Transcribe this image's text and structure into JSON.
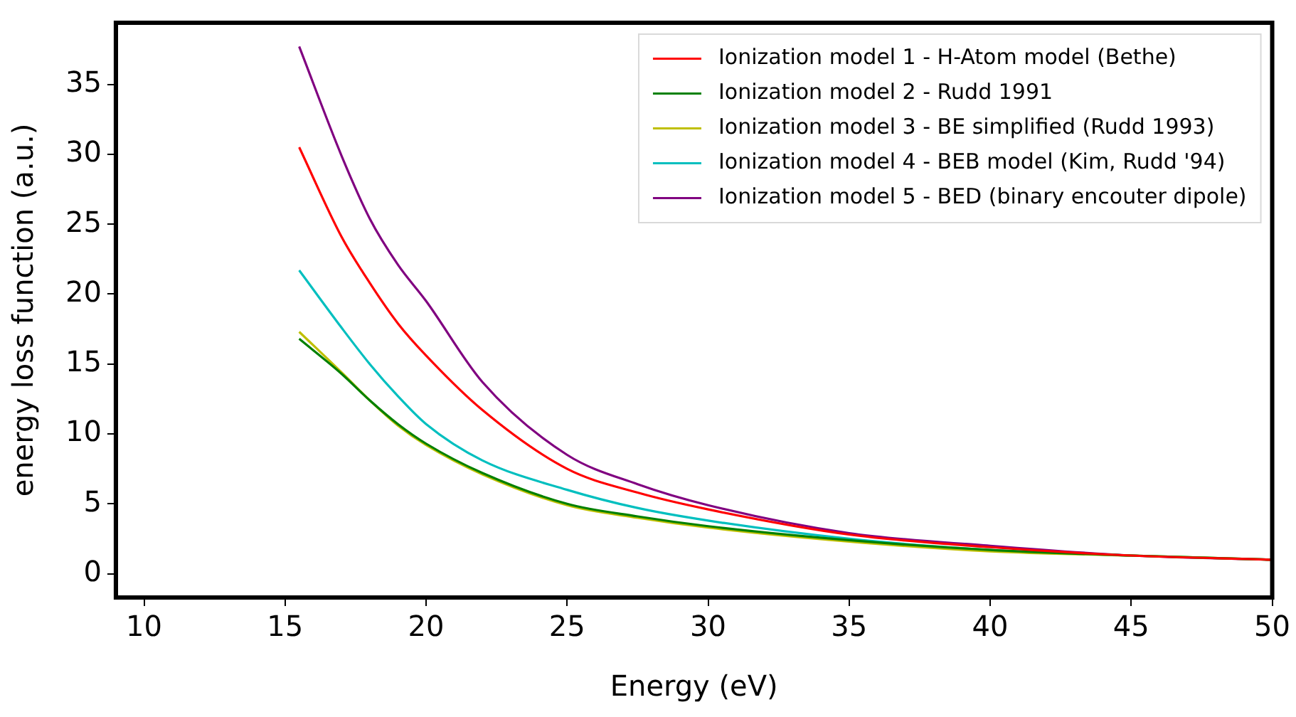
{
  "chart_data": {
    "type": "line",
    "xlabel": "Energy (eV)",
    "ylabel": "energy loss function (a.u.)",
    "xlim": [
      9,
      50
    ],
    "ylim": [
      -1.7,
      39.4
    ],
    "xticks": [
      10,
      15,
      20,
      25,
      30,
      35,
      40,
      45,
      50
    ],
    "yticks": [
      0,
      5,
      10,
      15,
      20,
      25,
      30,
      35
    ],
    "grid": false,
    "legend": "top right",
    "marker": "none",
    "line_style": "solid",
    "x": [
      15.5,
      17,
      18,
      19,
      20,
      22,
      25,
      27.5,
      30,
      35,
      40,
      45,
      50
    ],
    "series": [
      {
        "name": "Ionization model 1 - H-Atom model (Bethe)",
        "color": "#ff0000",
        "values": [
          30.5,
          24.1,
          20.8,
          17.9,
          15.6,
          11.7,
          7.5,
          5.8,
          4.6,
          2.8,
          1.9,
          1.3,
          1.0
        ]
      },
      {
        "name": "Ionization model 2 - Rudd 1991",
        "color": "#008000",
        "values": [
          16.8,
          14.3,
          12.4,
          10.7,
          9.3,
          7.2,
          5.0,
          4.1,
          3.4,
          2.4,
          1.7,
          1.3,
          1.0
        ]
      },
      {
        "name": "Ionization model 3 - BE simplified (Rudd 1993)",
        "color": "#bfbf00",
        "values": [
          17.3,
          14.4,
          12.4,
          10.6,
          9.2,
          7.1,
          4.9,
          4.0,
          3.3,
          2.3,
          1.6,
          1.3,
          1.0
        ]
      },
      {
        "name": "Ionization model 4 - BEB model (Kim, Rudd '94)",
        "color": "#00bfbf",
        "values": [
          21.7,
          17.6,
          15.0,
          12.7,
          10.7,
          8.1,
          6.0,
          4.7,
          3.8,
          2.5,
          1.7,
          1.3,
          1.0
        ]
      },
      {
        "name": "Ionization model 5 - BED (binary encouter dipole)",
        "color": "#800080",
        "values": [
          37.7,
          29.9,
          25.4,
          22.1,
          19.5,
          13.7,
          8.5,
          6.4,
          4.9,
          2.9,
          2.0,
          1.3,
          1.0
        ]
      }
    ]
  }
}
